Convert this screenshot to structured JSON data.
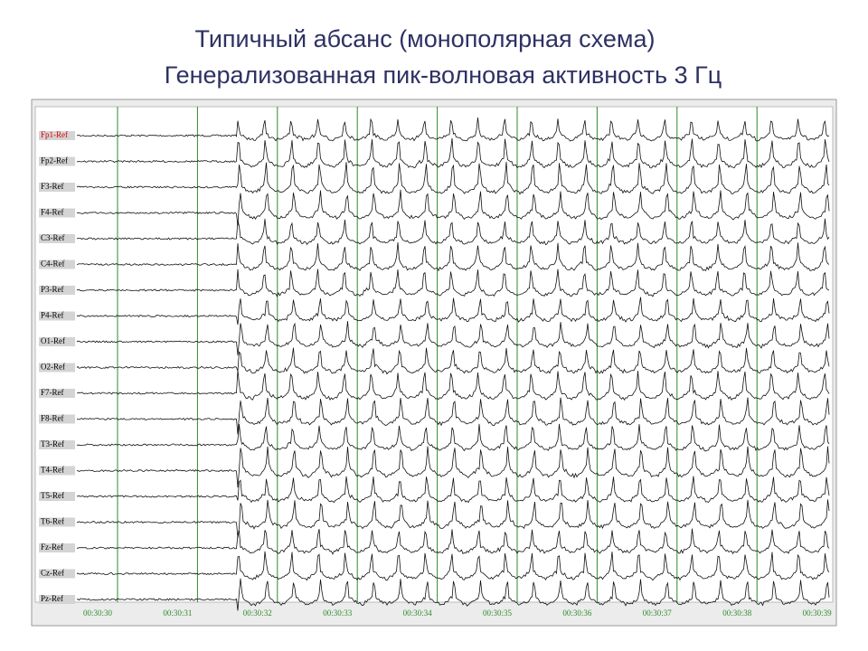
{
  "header": {
    "title": "Типичный абсанс (монополярная схема)",
    "subtitle": "Генерализованная пик-волновая активность 3 Гц"
  },
  "eeg": {
    "channels": [
      "Fp1-Ref",
      "Fp2-Ref",
      "F3-Ref",
      "F4-Ref",
      "C3-Ref",
      "C4-Ref",
      "P3-Ref",
      "P4-Ref",
      "O1-Ref",
      "O2-Ref",
      "F7-Ref",
      "F8-Ref",
      "T3-Ref",
      "T4-Ref",
      "T5-Ref",
      "T6-Ref",
      "Fz-Ref",
      "Cz-Ref",
      "Pz-Ref"
    ],
    "time_labels": [
      "00:30:30",
      "00:30:31",
      "00:30:32",
      "00:30:33",
      "00:30:34",
      "00:30:35",
      "00:30:36",
      "00:30:37",
      "00:30:38",
      "00:30:39"
    ]
  }
}
